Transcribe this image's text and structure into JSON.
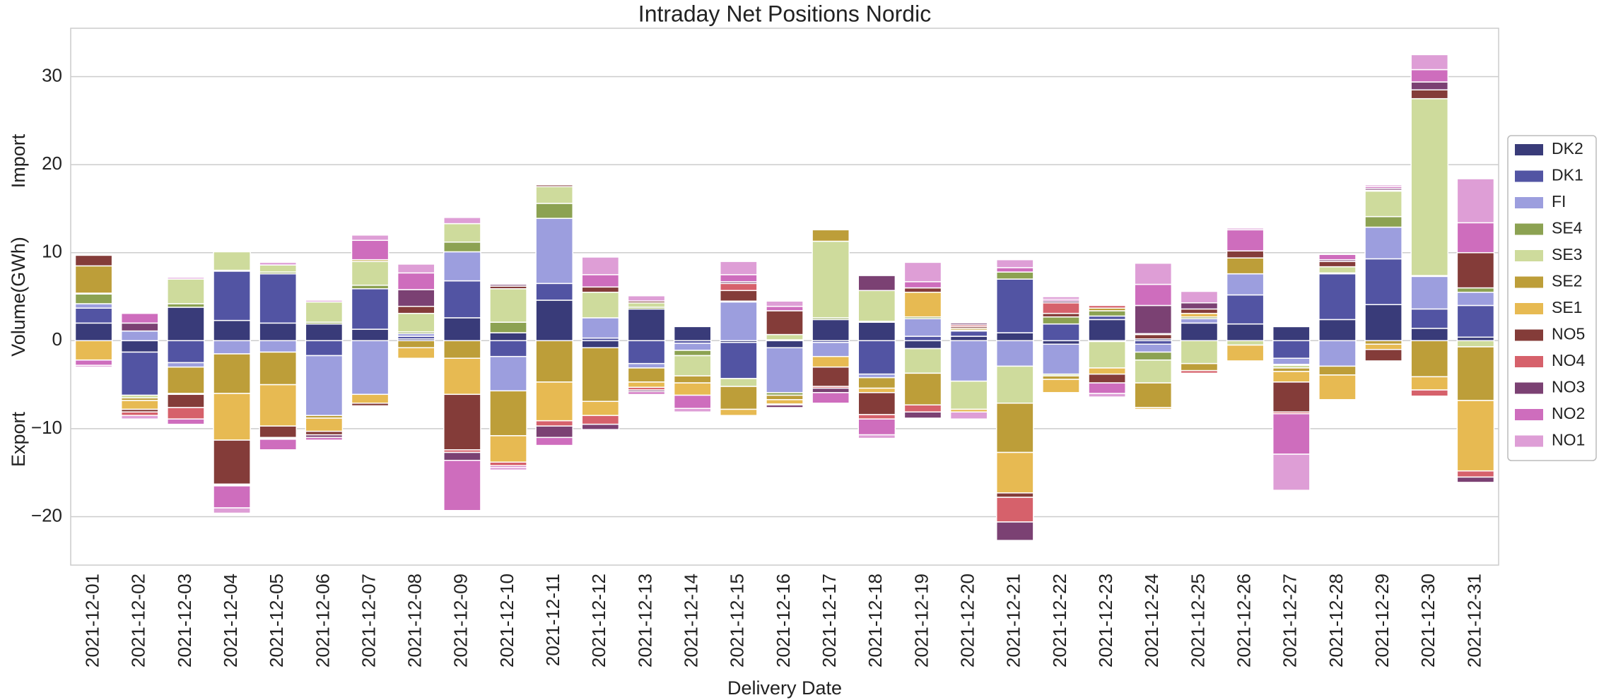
{
  "chart_data": {
    "type": "stacked_bar",
    "title": "Intraday Net Positions Nordic",
    "xlabel": "Delivery Date",
    "ylabel": "Volume(GWh)",
    "annotations": [
      "Import",
      "Export"
    ],
    "categories": [
      "2021-12-01",
      "2021-12-02",
      "2021-12-03",
      "2021-12-04",
      "2021-12-05",
      "2021-12-06",
      "2021-12-07",
      "2021-12-08",
      "2021-12-09",
      "2021-12-10",
      "2021-12-11",
      "2021-12-12",
      "2021-12-13",
      "2021-12-14",
      "2021-12-15",
      "2021-12-16",
      "2021-12-17",
      "2021-12-18",
      "2021-12-19",
      "2021-12-20",
      "2021-12-21",
      "2021-12-22",
      "2021-12-23",
      "2021-12-24",
      "2021-12-25",
      "2021-12-26",
      "2021-12-27",
      "2021-12-28",
      "2021-12-29",
      "2021-12-30",
      "2021-12-31"
    ],
    "series": [
      {
        "name": "DK2",
        "color": "#393b79",
        "values": [
          2,
          -1.3,
          3.8,
          2.3,
          2,
          1.9,
          1.3,
          0.2,
          2.6,
          0.9,
          4.6,
          -0.8,
          3.6,
          1.6,
          -0.2,
          -0.8,
          2.4,
          2.1,
          -0.9,
          0.5,
          0.9,
          -0.4,
          2.4,
          0.2,
          2,
          1.9,
          1.6,
          2.4,
          4.1,
          1.4,
          0.4
        ]
      },
      {
        "name": "DK1",
        "color": "#5254a3",
        "values": [
          1.7,
          -4.9,
          -2.5,
          5.6,
          5.6,
          -1.7,
          4.6,
          0.3,
          4.2,
          -1.8,
          1.9,
          0.3,
          -2.6,
          -0.3,
          -4.1,
          0.1,
          -0.2,
          -3.8,
          0.5,
          0.6,
          6.1,
          1.9,
          0.4,
          -0.4,
          0,
          3.3,
          -2,
          5.2,
          5.2,
          2.2,
          3.6
        ]
      },
      {
        "name": "FI",
        "color": "#9c9ede",
        "values": [
          0.5,
          1.1,
          -0.5,
          -1.5,
          -1.3,
          -6.8,
          -6.1,
          0.3,
          3.3,
          -3.9,
          7.4,
          2.3,
          -0.5,
          -0.8,
          4.4,
          -5.1,
          -1.6,
          -0.4,
          2,
          -4.6,
          -2.9,
          -3.4,
          -0.1,
          -0.9,
          0.5,
          2.4,
          -0.7,
          -2.9,
          3.6,
          3.7,
          1.5
        ]
      },
      {
        "name": "SE4",
        "color": "#8ca252",
        "values": [
          1.1,
          0,
          0.4,
          0.1,
          0.2,
          0.2,
          0.4,
          0.2,
          1.1,
          1.2,
          1.7,
          0,
          0.2,
          -0.6,
          0.1,
          -0.3,
          0.2,
          0.1,
          0.2,
          0.1,
          0.8,
          0.8,
          0.6,
          -0.9,
          0.2,
          0,
          -0.1,
          0.1,
          1.2,
          0.1,
          0.5
        ]
      },
      {
        "name": "SE3",
        "color": "#cedb9c",
        "values": [
          0.1,
          -0.3,
          2.8,
          2.1,
          0.8,
          2.3,
          2.7,
          2.1,
          2.1,
          3.8,
          1.9,
          2.9,
          0.5,
          -2.3,
          -0.9,
          0.6,
          8.7,
          3.5,
          -2.8,
          -3.2,
          -4.2,
          -0.2,
          -3,
          -2.6,
          -2.6,
          -0.5,
          -0.3,
          0.7,
          2.9,
          20.1,
          -0.7
        ]
      },
      {
        "name": "SE2",
        "color": "#bd9e39",
        "values": [
          3.1,
          -0.3,
          -3,
          -4.5,
          -3.7,
          -0.3,
          0.2,
          -0.8,
          -2,
          -5.1,
          -4.7,
          -6.1,
          -1.6,
          -0.8,
          -2.6,
          -0.5,
          1.3,
          -1.2,
          -3.6,
          0.2,
          -5.6,
          -0.4,
          0.3,
          -2.8,
          -0.8,
          1.8,
          -0.4,
          -1,
          -0.4,
          -4.1,
          -6.1
        ]
      },
      {
        "name": "SE1",
        "color": "#e7ba52",
        "values": [
          -2.2,
          -1,
          -0.1,
          -5.3,
          -4.7,
          -1.5,
          -1,
          -1.2,
          -4.1,
          -3,
          -4.4,
          -1.6,
          -0.6,
          -1.4,
          -0.7,
          -0.5,
          -1.2,
          -0.5,
          2.8,
          -0.3,
          -4.6,
          -1.5,
          -0.7,
          -0.2,
          0.4,
          -1.8,
          -1.2,
          -2.8,
          -0.6,
          -1.5,
          -8
        ]
      },
      {
        "name": "NO5",
        "color": "#843c39",
        "values": [
          1.2,
          -0.3,
          -1.5,
          -5,
          -1.3,
          -0.4,
          -0.3,
          0.8,
          -6.3,
          0.3,
          0.2,
          0.6,
          0.2,
          0,
          1.2,
          2.7,
          -2.2,
          -2.5,
          0.5,
          0.2,
          -0.5,
          0.4,
          -1,
          0.5,
          0.5,
          0.8,
          -3.4,
          0.6,
          -1.3,
          1,
          4
        ]
      },
      {
        "name": "NO4",
        "color": "#d6616b",
        "values": [
          0,
          -0.4,
          -1.3,
          -0.1,
          -0.1,
          0,
          0,
          0,
          -0.3,
          -0.4,
          -0.6,
          -1,
          -0.3,
          0,
          0.8,
          -0.1,
          -0.2,
          -0.5,
          -0.8,
          0.2,
          -2.8,
          1.2,
          0.3,
          0.1,
          -0.3,
          0,
          -0.2,
          0,
          0.1,
          -0.7,
          -0.7
        ]
      },
      {
        "name": "NO3",
        "color": "#7b4173",
        "values": [
          0,
          0.9,
          0,
          -0.1,
          -0.1,
          -0.3,
          0,
          1.9,
          -0.9,
          0.2,
          -1.3,
          -0.6,
          -0.2,
          0,
          0.2,
          -0.3,
          -0.5,
          1.7,
          -0.7,
          0.2,
          -2.1,
          0.2,
          0,
          3.2,
          0.7,
          0,
          0.1,
          0.2,
          0.2,
          0.9,
          -0.6
        ]
      },
      {
        "name": "NO2",
        "color": "#ce6dbd",
        "values": [
          -0.6,
          1.1,
          -0.6,
          -2.5,
          -1.2,
          -0.3,
          2.2,
          1.9,
          -5.7,
          -0.2,
          -0.9,
          1.4,
          -0.3,
          -1.5,
          0.8,
          0.5,
          -1.2,
          -1.8,
          0.7,
          0,
          0.5,
          0.2,
          -1.2,
          2.4,
          0,
          2.4,
          -4.6,
          0.6,
          0.2,
          1.4,
          3.4
        ]
      },
      {
        "name": "NO1",
        "color": "#de9ed6",
        "values": [
          -0.2,
          -0.4,
          0.2,
          -0.6,
          0.3,
          0.2,
          0.6,
          1,
          0.7,
          -0.3,
          0,
          2,
          0.6,
          -0.4,
          1.5,
          0.6,
          0,
          -0.4,
          2.2,
          -0.8,
          0.9,
          0.3,
          -0.4,
          2.4,
          1.3,
          0.2,
          -4.1,
          0,
          0.2,
          1.7,
          5
        ]
      }
    ],
    "ylim": [
      -25.5,
      35.5
    ],
    "yticks": [
      {
        "value": -20,
        "label": "−20"
      },
      {
        "value": -10,
        "label": "−10"
      },
      0,
      10,
      20,
      30
    ],
    "grid": true,
    "legend": "right"
  }
}
